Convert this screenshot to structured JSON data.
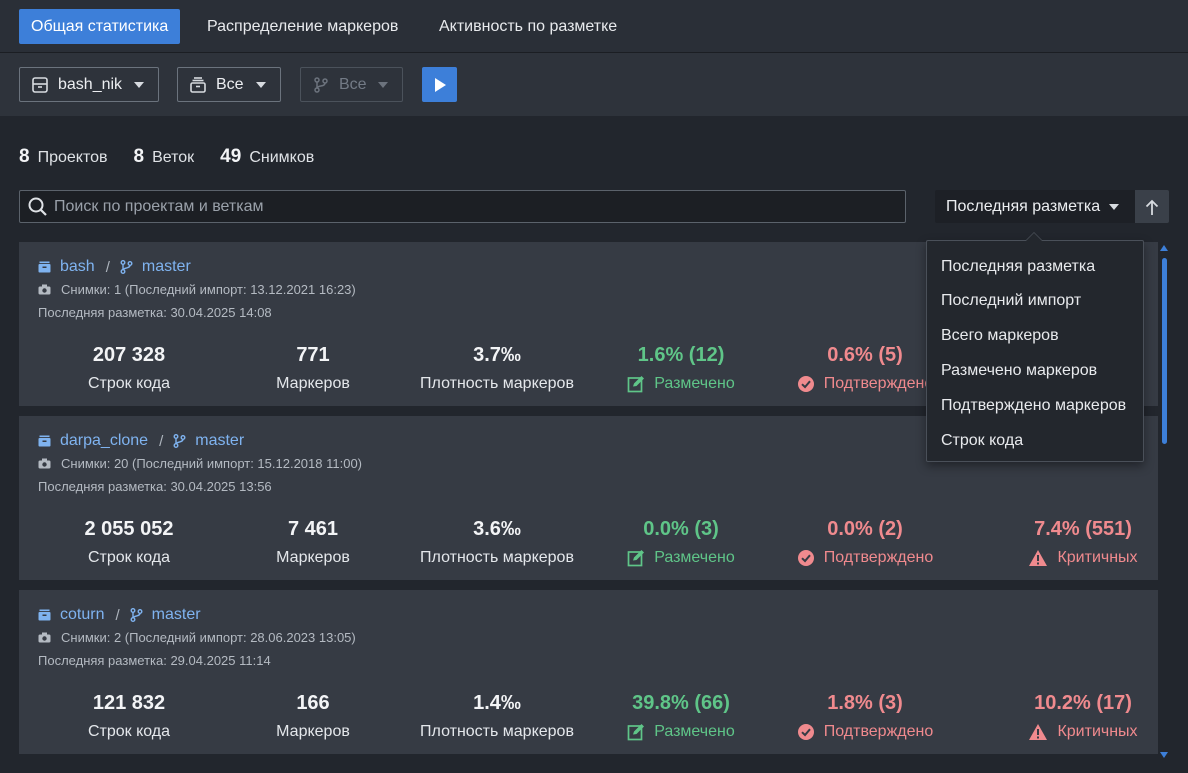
{
  "tabs": [
    {
      "label": "Общая статистика",
      "active": true
    },
    {
      "label": "Распределение маркеров",
      "active": false
    },
    {
      "label": "Активность по разметке",
      "active": false
    }
  ],
  "toolbar": {
    "project_select": "bash_nik",
    "snapshot_select": "Все",
    "branch_select": "Все"
  },
  "summary": [
    {
      "value": "8",
      "label": "Проектов"
    },
    {
      "value": "8",
      "label": "Веток"
    },
    {
      "value": "49",
      "label": "Снимков"
    }
  ],
  "search": {
    "placeholder": "Поиск по проектам и веткам"
  },
  "sort": {
    "selected": "Последняя разметка",
    "options": [
      "Последняя разметка",
      "Последний импорт",
      "Всего маркеров",
      "Размечено маркеров",
      "Подтверждено маркеров",
      "Строк кода"
    ]
  },
  "cards": [
    {
      "project": "bash",
      "branch": "master",
      "snapshots": "Снимки: 1 (Последний импорт: 13.12.2021 16:23)",
      "last_markup": "Последняя разметка: 30.04.2025 14:08",
      "metrics": [
        {
          "value": "207 328",
          "label": "Строк кода"
        },
        {
          "value": "771",
          "label": "Маркеров"
        },
        {
          "value": "3.7‰",
          "label": "Плотность маркеров"
        },
        {
          "value": "1.6% (12)",
          "label": "Размечено"
        },
        {
          "value": "0.6% (5)",
          "label": "Подтверждено"
        },
        {
          "value": "",
          "label": ""
        }
      ]
    },
    {
      "project": "darpa_clone",
      "branch": "master",
      "snapshots": "Снимки: 20 (Последний импорт: 15.12.2018 11:00)",
      "last_markup": "Последняя разметка: 30.04.2025 13:56",
      "metrics": [
        {
          "value": "2 055 052",
          "label": "Строк кода"
        },
        {
          "value": "7 461",
          "label": "Маркеров"
        },
        {
          "value": "3.6‰",
          "label": "Плотность маркеров"
        },
        {
          "value": "0.0% (3)",
          "label": "Размечено"
        },
        {
          "value": "0.0% (2)",
          "label": "Подтверждено"
        },
        {
          "value": "7.4% (551)",
          "label": "Критичных"
        }
      ]
    },
    {
      "project": "coturn",
      "branch": "master",
      "snapshots": "Снимки: 2 (Последний импорт: 28.06.2023 13:05)",
      "last_markup": "Последняя разметка: 29.04.2025 11:14",
      "metrics": [
        {
          "value": "121 832",
          "label": "Строк кода"
        },
        {
          "value": "166",
          "label": "Маркеров"
        },
        {
          "value": "1.4‰",
          "label": "Плотность маркеров"
        },
        {
          "value": "39.8% (66)",
          "label": "Размечено"
        },
        {
          "value": "1.8% (3)",
          "label": "Подтверждено"
        },
        {
          "value": "10.2% (17)",
          "label": "Критичных"
        }
      ]
    }
  ],
  "colors": {
    "accent": "#3d7fd9",
    "link": "#7fb3f0",
    "marked": "#5fc588",
    "confirmed": "#f08a8e",
    "critical": "#f08a8e",
    "background": "#22262d",
    "card": "#363b44"
  },
  "icons": {
    "project": "archive-box-icon",
    "branch": "git-branch-icon",
    "snapshot": "camera-icon",
    "marked": "edit-square-icon",
    "confirmed": "check-circle-icon",
    "critical": "warning-triangle-icon",
    "run": "play-icon",
    "sort_direction": "arrow-up-icon",
    "search": "search-icon"
  }
}
